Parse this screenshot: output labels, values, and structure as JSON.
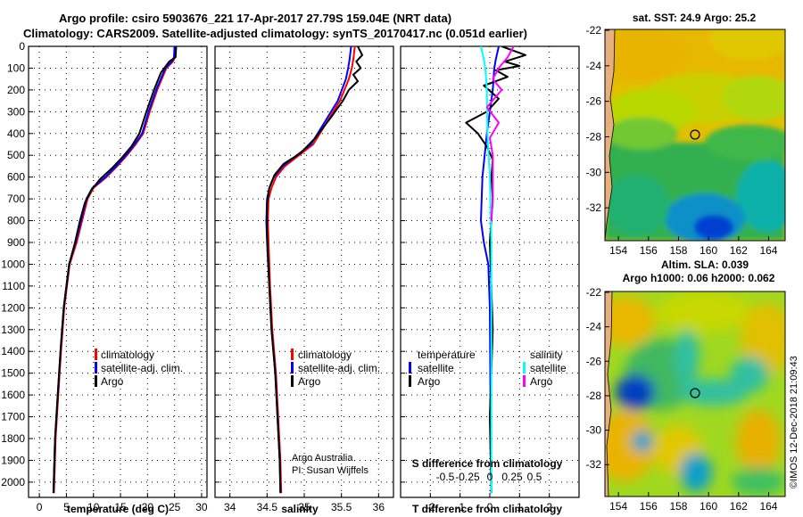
{
  "header": {
    "line1": "Argo profile: csiro 5903676_221 17-Apr-2017 27.79S 159.04E (NRT data)",
    "line2": "Climatology: CARS2009. Satellite-adjusted climatology: synTS_20170417.nc (0.051d earlier)"
  },
  "colors": {
    "climatology": "#ff0000",
    "satellite": "#0000ff",
    "argo": "#000000",
    "sal_satellite": "#00ffff",
    "sal_argo": "#ff00ff"
  },
  "chart_data": [
    {
      "type": "line",
      "xlabel": "temperature (deg C)",
      "xlim": [
        -2,
        31
      ],
      "xticks": [
        "0",
        "5",
        "10",
        "15",
        "20",
        "25",
        "30"
      ],
      "ylim": [
        0,
        2070
      ],
      "yticks": [
        "0",
        "100",
        "200",
        "300",
        "400",
        "500",
        "600",
        "700",
        "800",
        "900",
        "1000",
        "1100",
        "1200",
        "1300",
        "1400",
        "1500",
        "1600",
        "1700",
        "1800",
        "1900",
        "2000"
      ],
      "legend": [
        "climatology",
        "satellite-adj. clim.",
        "Argo"
      ],
      "series": [
        {
          "name": "climatology",
          "color": "#ff0000",
          "x": [
            25.2,
            25.1,
            24.7,
            23.5,
            21.8,
            20.4,
            19.2,
            17.8,
            16.2,
            14.4,
            12.4,
            10.0,
            8.9,
            7.9,
            6.9,
            5.6,
            4.6,
            4.0,
            3.5,
            3.0,
            2.7
          ],
          "y": [
            0,
            50,
            70,
            100,
            200,
            300,
            400,
            450,
            500,
            550,
            600,
            650,
            700,
            800,
            900,
            1000,
            1200,
            1400,
            1600,
            1800,
            2050
          ]
        },
        {
          "name": "satellite-adj. clim.",
          "color": "#0000ff",
          "x": [
            25.0,
            24.9,
            24.5,
            23.3,
            21.6,
            20.2,
            19.0,
            17.6,
            16.0,
            14.2,
            12.2,
            9.8,
            8.7,
            7.7,
            6.7,
            5.5,
            4.5,
            3.9,
            3.4,
            2.9,
            2.6
          ],
          "y": [
            0,
            50,
            70,
            100,
            200,
            300,
            400,
            450,
            500,
            550,
            600,
            650,
            700,
            800,
            900,
            1000,
            1200,
            1400,
            1600,
            1800,
            2050
          ]
        },
        {
          "name": "Argo",
          "color": "#000000",
          "x": [
            25.3,
            25.2,
            24.0,
            22.5,
            21.2,
            19.8,
            18.5,
            17.0,
            15.3,
            13.4,
            11.2,
            9.6,
            8.4,
            7.5,
            6.6,
            5.5,
            4.5,
            3.9,
            3.4,
            2.9,
            2.6
          ],
          "y": [
            0,
            50,
            70,
            120,
            200,
            300,
            400,
            460,
            510,
            560,
            610,
            660,
            720,
            800,
            900,
            1000,
            1200,
            1400,
            1600,
            1800,
            2050
          ]
        }
      ]
    },
    {
      "type": "line",
      "xlabel": "salinity",
      "xlim": [
        33.8,
        36.2
      ],
      "xticks": [
        "34",
        "34.5",
        "35",
        "35.5",
        "36"
      ],
      "ylim": [
        0,
        2070
      ],
      "legend": [
        "climatology",
        "satellite-adj. clim.",
        "Argo"
      ],
      "annotation": [
        "Argo Australia",
        "PI: Susan Wijffels"
      ],
      "series": [
        {
          "name": "climatology",
          "color": "#ff0000",
          "x": [
            35.68,
            35.66,
            35.64,
            35.6,
            35.48,
            35.3,
            35.12,
            34.93,
            34.74,
            34.62,
            34.56,
            34.52,
            34.51,
            34.52,
            34.54,
            34.57,
            34.62,
            34.65,
            34.68,
            34.69
          ],
          "y": [
            0,
            60,
            100,
            150,
            250,
            350,
            450,
            500,
            550,
            600,
            650,
            700,
            800,
            900,
            1100,
            1300,
            1500,
            1700,
            1900,
            2050
          ]
        },
        {
          "name": "satellite-adj. clim.",
          "color": "#0000ff",
          "x": [
            35.63,
            35.61,
            35.59,
            35.56,
            35.45,
            35.27,
            35.09,
            34.9,
            34.71,
            34.59,
            34.53,
            34.5,
            34.49,
            34.5,
            34.53,
            34.56,
            34.61,
            34.64,
            34.67,
            34.68
          ],
          "y": [
            0,
            60,
            100,
            150,
            250,
            350,
            450,
            500,
            550,
            600,
            650,
            700,
            800,
            900,
            1100,
            1300,
            1500,
            1700,
            1900,
            2050
          ]
        },
        {
          "name": "Argo",
          "color": "#000000",
          "x": [
            35.72,
            35.78,
            35.7,
            35.76,
            35.66,
            35.72,
            35.6,
            35.52,
            35.35,
            35.15,
            34.95,
            34.72,
            34.6,
            34.53,
            34.5,
            34.5,
            34.53,
            34.56,
            34.61,
            34.64,
            34.67,
            34.68
          ],
          "y": [
            0,
            40,
            70,
            100,
            130,
            160,
            200,
            250,
            330,
            420,
            490,
            540,
            590,
            650,
            720,
            860,
            1100,
            1300,
            1500,
            1700,
            1900,
            2050
          ]
        }
      ]
    },
    {
      "type": "line",
      "xlabel": "T difference from climatology",
      "xlabel2": "S difference from climatology",
      "xlim": [
        -3,
        3
      ],
      "xticks": [
        "-2",
        "-1",
        "0",
        "1",
        "2"
      ],
      "xticks_top": [
        "-0.5",
        "-0.25",
        "0",
        "0.25",
        "0.5"
      ],
      "ylim": [
        0,
        2070
      ],
      "legend_temperature": [
        "temperature",
        "satellite",
        "Argo"
      ],
      "legend_salinity": [
        "salinity",
        "satellite",
        "Argo"
      ],
      "series": [
        {
          "name": "T satellite",
          "color": "#0000ff",
          "x": [
            0.3,
            0.2,
            0.15,
            0.1,
            -0.1,
            -0.25,
            -0.3,
            -0.2,
            -0.05,
            0.0,
            0.02,
            0.05
          ],
          "y": [
            0,
            60,
            100,
            200,
            400,
            600,
            800,
            900,
            1000,
            1200,
            1600,
            2050
          ]
        },
        {
          "name": "T Argo",
          "color": "#000000",
          "x": [
            0.4,
            1.2,
            0.5,
            1.0,
            0.2,
            0.6,
            -0.2,
            0.3,
            -0.1,
            -0.8,
            -0.4,
            -0.1,
            0.1,
            0.05,
            0.1,
            0.0,
            0.1,
            0.0,
            0.05
          ],
          "y": [
            0,
            40,
            70,
            90,
            110,
            140,
            180,
            240,
            300,
            350,
            400,
            460,
            520,
            600,
            700,
            900,
            1300,
            1700,
            2050
          ]
        },
        {
          "name": "S satellite",
          "color": "#00ffff",
          "x": [
            -0.3,
            -0.2,
            -0.15,
            -0.1,
            -0.08,
            0.0,
            0.05,
            0.05,
            0.05,
            0.05
          ],
          "y": [
            0,
            60,
            100,
            200,
            400,
            600,
            900,
            1300,
            1700,
            2050
          ]
        },
        {
          "name": "S Argo",
          "color": "#ff00ff",
          "x": [
            0.8,
            0.6,
            0.3,
            0.1,
            0.4,
            -0.1,
            0.3,
            0.0,
            0.1,
            0.1,
            0.1,
            0.05
          ],
          "y": [
            0,
            50,
            100,
            150,
            200,
            280,
            350,
            420,
            500,
            600,
            700,
            800
          ]
        }
      ]
    },
    {
      "type": "heatmap",
      "title": "sat. SST: 24.9 Argo: 25.2",
      "xticks": [
        "154",
        "156",
        "158",
        "160",
        "162",
        "164"
      ],
      "yticks": [
        "-22",
        "-24",
        "-26",
        "-28",
        "-30",
        "-32"
      ],
      "marker": {
        "lon": 159.04,
        "lat": -27.79
      }
    },
    {
      "type": "heatmap",
      "title": "Altim. SLA: 0.039",
      "subtitle": "Argo h1000: 0.06 h2000: 0.062",
      "xticks": [
        "154",
        "156",
        "158",
        "160",
        "162",
        "164"
      ],
      "yticks": [
        "-22",
        "-24",
        "-26",
        "-28",
        "-30",
        "-32"
      ],
      "marker": {
        "lon": 159.04,
        "lat": -27.79
      }
    }
  ],
  "watermark": "©IMOS 12-Dec-2018 21:09:43"
}
